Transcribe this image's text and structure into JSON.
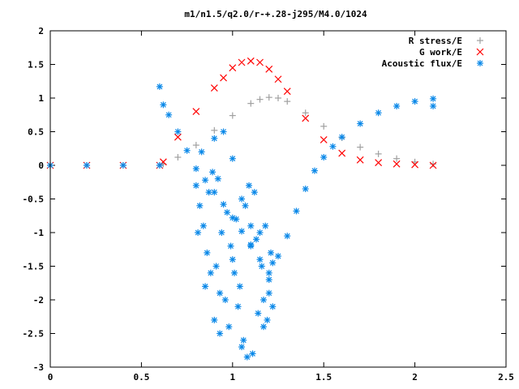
{
  "chart_data": {
    "type": "scatter",
    "title": "m1/n1.5/q2.0/r-+.28-j295/M4.0/1024",
    "xlabel": "",
    "ylabel": "",
    "xlim": [
      0,
      2.5
    ],
    "ylim": [
      -3,
      2
    ],
    "x_ticks": [
      "0",
      "0.5",
      "1",
      "1.5",
      "2",
      "2.5"
    ],
    "y_ticks": [
      "2",
      "1.5",
      "1",
      "0.5",
      "0",
      "-0.5",
      "-1",
      "-1.5",
      "-2",
      "-2.5",
      "-3"
    ],
    "legend_position": "top-right",
    "grid": false,
    "series": [
      {
        "name": "R stress/E",
        "marker": "+",
        "color": "#a0a0a0",
        "x": [
          0.0,
          0.2,
          0.4,
          0.6,
          0.62,
          0.7,
          0.8,
          0.9,
          1.0,
          1.1,
          1.15,
          1.2,
          1.25,
          1.3,
          1.4,
          1.5,
          1.6,
          1.7,
          1.8,
          1.9,
          2.0,
          2.1
        ],
        "y": [
          0,
          0,
          0,
          0,
          0.02,
          0.12,
          0.3,
          0.52,
          0.74,
          0.92,
          0.98,
          1.01,
          1.0,
          0.95,
          0.78,
          0.58,
          0.41,
          0.27,
          0.17,
          0.1,
          0.05,
          0.02
        ]
      },
      {
        "name": "G work/E",
        "marker": "x",
        "color": "#ff0000",
        "x": [
          0.0,
          0.2,
          0.4,
          0.6,
          0.62,
          0.7,
          0.8,
          0.9,
          0.95,
          1.0,
          1.05,
          1.1,
          1.15,
          1.2,
          1.25,
          1.3,
          1.4,
          1.5,
          1.6,
          1.7,
          1.8,
          1.9,
          2.0,
          2.1
        ],
        "y": [
          0,
          0,
          0,
          0,
          0.05,
          0.42,
          0.8,
          1.15,
          1.3,
          1.45,
          1.53,
          1.55,
          1.53,
          1.43,
          1.28,
          1.1,
          0.7,
          0.38,
          0.18,
          0.08,
          0.04,
          0.02,
          0.01,
          0.0
        ]
      },
      {
        "name": "Acoustic flux/E",
        "marker": "*",
        "color": "#0a88e8",
        "x": [
          0.0,
          0.2,
          0.4,
          0.6,
          0.6,
          0.62,
          0.65,
          0.7,
          0.75,
          0.8,
          0.85,
          0.9,
          0.95,
          1.0,
          1.05,
          1.1,
          1.15,
          1.2,
          1.22,
          1.25,
          1.3,
          1.35,
          1.4,
          1.45,
          1.5,
          1.55,
          1.6,
          1.7,
          1.8,
          1.9,
          2.0,
          2.1,
          2.1
        ],
        "y": [
          0,
          0,
          0,
          0,
          1.17,
          0.9,
          0.75,
          0.5,
          0.22,
          -0.05,
          -0.22,
          -0.4,
          -0.58,
          -0.78,
          -0.98,
          -1.18,
          -1.4,
          -1.6,
          -1.45,
          -1.35,
          -1.05,
          -0.68,
          -0.35,
          -0.08,
          0.12,
          0.28,
          0.42,
          0.62,
          0.78,
          0.88,
          0.95,
          0.99,
          0.88
        ]
      },
      {
        "name": "",
        "marker": "*",
        "color": "#0a88e8",
        "x": [
          0.8,
          0.82,
          0.84,
          0.86,
          0.88,
          0.9,
          0.92,
          0.94,
          0.96,
          0.98,
          1.0,
          1.02,
          1.04,
          1.06,
          1.08,
          1.1,
          1.12,
          1.14,
          1.16,
          1.18,
          1.2,
          1.22,
          0.83,
          0.87,
          0.91,
          0.95,
          0.99,
          1.03,
          1.07,
          1.11,
          1.15,
          1.19,
          0.85,
          0.89,
          0.93,
          0.97,
          1.01,
          1.05,
          1.09,
          1.13,
          1.17,
          1.21,
          0.81,
          0.93,
          1.05,
          1.17,
          0.9,
          1.0,
          1.1,
          1.2
        ],
        "y": [
          -0.3,
          -0.6,
          -0.9,
          -1.3,
          -1.6,
          0.4,
          -0.2,
          -1.0,
          -2.0,
          -2.4,
          0.1,
          -0.8,
          -1.8,
          -2.6,
          -2.85,
          -1.2,
          -0.4,
          -2.2,
          -1.5,
          -0.9,
          -1.9,
          -2.1,
          0.2,
          -0.4,
          -1.5,
          0.5,
          -1.2,
          -2.1,
          -0.6,
          -2.8,
          -1.0,
          -2.3,
          -1.8,
          -0.1,
          -2.5,
          -0.7,
          -1.6,
          -2.7,
          -0.3,
          -1.1,
          -2.4,
          -1.3,
          -1.0,
          -1.9,
          -0.5,
          -2.0,
          -2.3,
          -1.4,
          -0.9,
          -1.7
        ]
      }
    ]
  }
}
